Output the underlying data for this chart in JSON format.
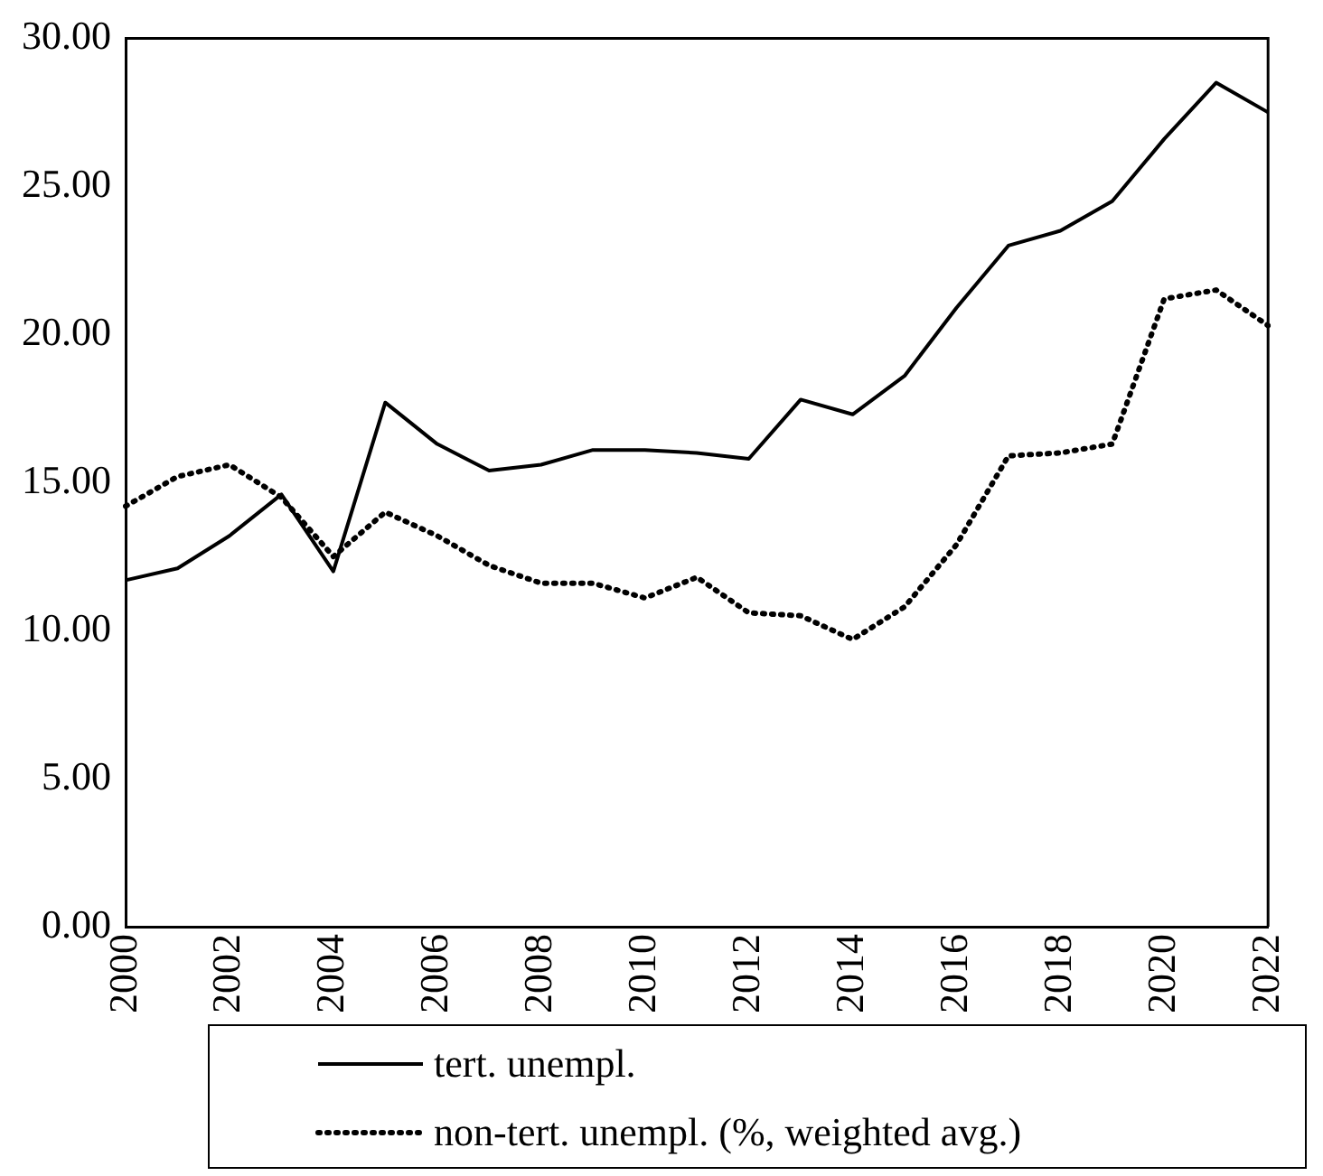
{
  "chart_data": {
    "type": "line",
    "categories": [
      "2000",
      null,
      "2002",
      null,
      "2004",
      null,
      "2006",
      null,
      "2008",
      null,
      "2010",
      null,
      "2012",
      null,
      "2014",
      null,
      "2016",
      null,
      "2018",
      null,
      "2020",
      null,
      "2022"
    ],
    "series": [
      {
        "name": "tert. unempl.",
        "color": "#000000",
        "line_style": "solid",
        "values": [
          11.7,
          12.1,
          13.2,
          14.6,
          12.0,
          17.7,
          16.3,
          15.4,
          15.6,
          16.1,
          16.1,
          16.0,
          15.8,
          17.8,
          17.3,
          18.6,
          20.9,
          23.0,
          23.5,
          24.5,
          26.6,
          28.5,
          27.5
        ]
      },
      {
        "name": "non-tert. unempl. (%, weighted avg.)",
        "color": "#000000",
        "line_style": "dotted",
        "values": [
          14.2,
          15.2,
          15.6,
          14.5,
          12.5,
          14.0,
          13.2,
          12.2,
          11.6,
          11.6,
          11.1,
          11.8,
          10.6,
          10.5,
          9.7,
          10.8,
          12.9,
          15.9,
          16.0,
          16.3,
          21.2,
          21.5,
          20.3
        ]
      }
    ],
    "ylim": [
      0,
      30
    ],
    "yticks": [
      {
        "value": 0,
        "label": "0.00"
      },
      {
        "value": 5,
        "label": "5.00"
      },
      {
        "value": 10,
        "label": "10.00"
      },
      {
        "value": 15,
        "label": "15.00"
      },
      {
        "value": 20,
        "label": "20.00"
      },
      {
        "value": 25,
        "label": "25.00"
      },
      {
        "value": 30,
        "label": "30.00"
      }
    ],
    "grid": false,
    "legend": "bottom",
    "marker": "none"
  }
}
